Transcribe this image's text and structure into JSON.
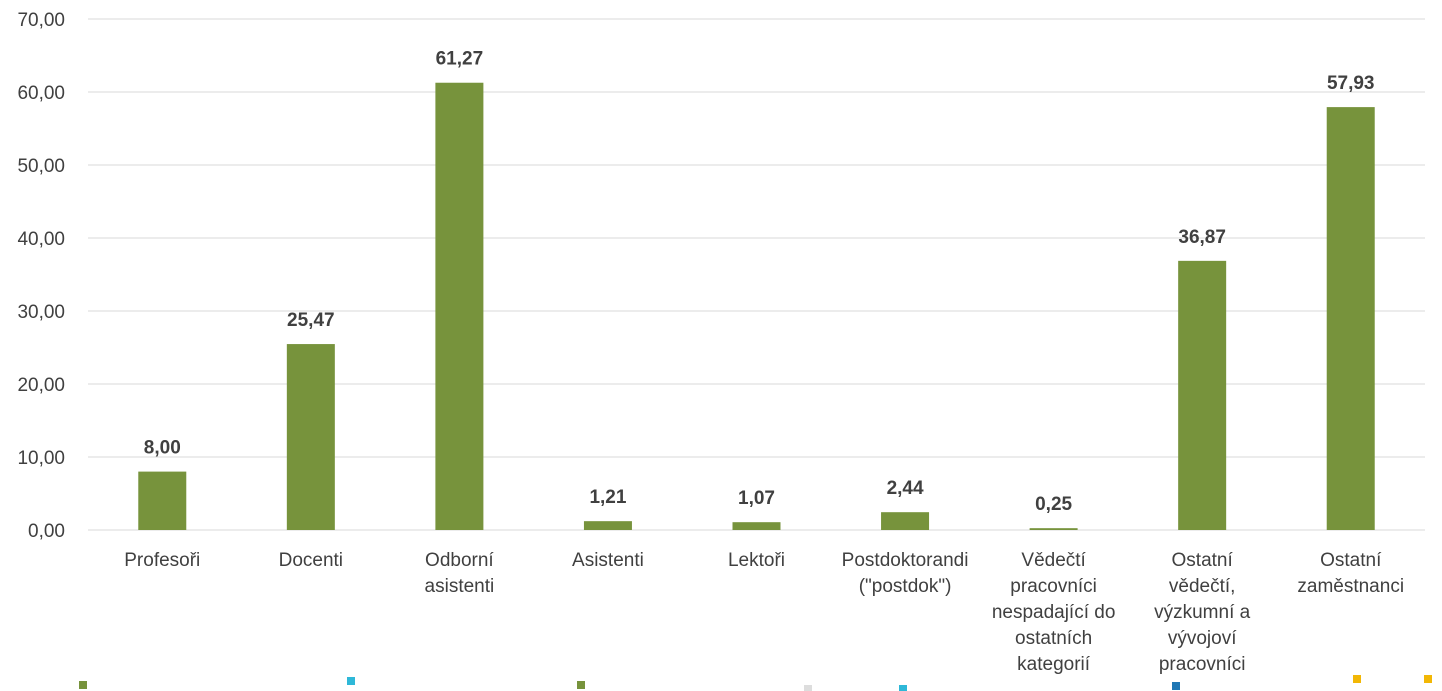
{
  "chart_data": {
    "type": "bar",
    "title": "",
    "xlabel": "",
    "ylabel": "",
    "categories": [
      [
        "Profesoři"
      ],
      [
        "Docenti"
      ],
      [
        "Odborní",
        "asistenti"
      ],
      [
        "Asistenti"
      ],
      [
        "Lektoři"
      ],
      [
        "Postdoktorandi",
        "(\"postdok\")"
      ],
      [
        "Vědečtí",
        "pracovníci",
        "nespadající do",
        "ostatních",
        "kategorií"
      ],
      [
        "Ostatní",
        "vědečtí,",
        "výzkumní a",
        "vývojoví",
        "pracovníci"
      ],
      [
        "Ostatní",
        "zaměstnanci"
      ]
    ],
    "values": [
      8.0,
      25.47,
      61.27,
      1.21,
      1.07,
      2.44,
      0.25,
      36.87,
      57.93
    ],
    "data_labels": [
      "8,00",
      "25,47",
      "61,27",
      "1,21",
      "1,07",
      "2,44",
      "0,25",
      "36,87",
      "57,93"
    ],
    "ylim": [
      0,
      70
    ],
    "yticks": [
      0,
      10,
      20,
      30,
      40,
      50,
      60,
      70
    ],
    "ytick_labels": [
      "0,00",
      "10,00",
      "20,00",
      "30,00",
      "40,00",
      "50,00",
      "60,00",
      "70,00"
    ],
    "grid": true,
    "legend": "none",
    "bar_color": "#77933c",
    "legend_marker_colors": [
      "#77933c",
      "#2eb8d8",
      "#77933c",
      "#dddddd",
      "#2eb8d8",
      "#1f77b4",
      "#f2b705",
      "#f2b705"
    ]
  }
}
